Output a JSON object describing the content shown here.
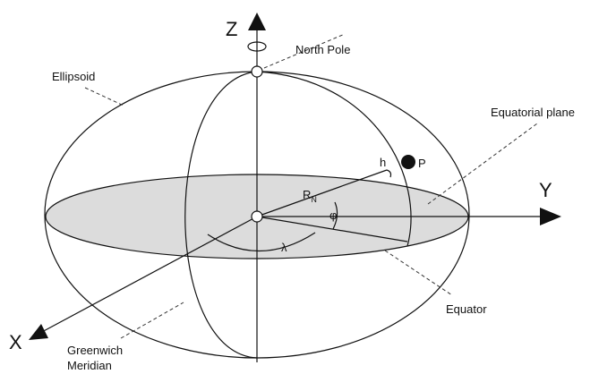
{
  "labels": {
    "z_axis": "Z",
    "y_axis": "Y",
    "x_axis": "X",
    "north_pole": "North Pole",
    "ellipsoid": "Ellipsoid",
    "equatorial_plane": "Equatorial plane",
    "height": "h",
    "point": "P",
    "radius": {
      "text": "R",
      "subscript": "N"
    },
    "latitude": "φ",
    "longitude": "λ",
    "equator": "Equator",
    "greenwich_meridian": {
      "lines": [
        "Greenwich",
        "Meridian"
      ]
    }
  }
}
